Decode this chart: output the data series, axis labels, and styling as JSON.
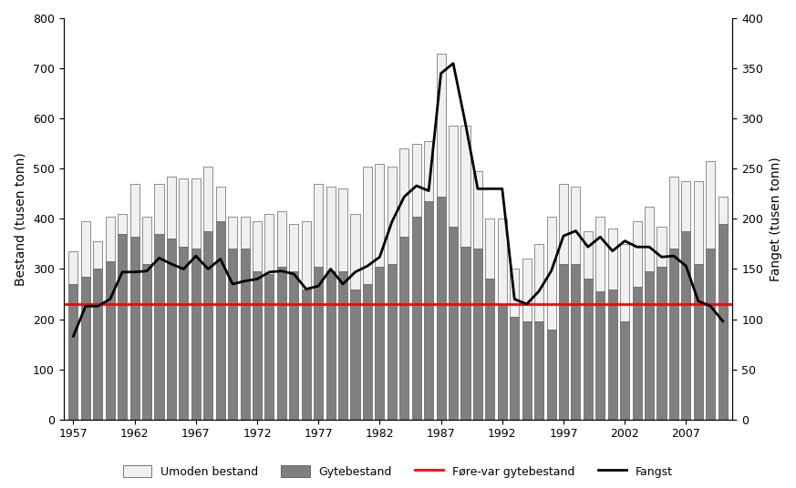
{
  "years": [
    1957,
    1958,
    1959,
    1960,
    1961,
    1962,
    1963,
    1964,
    1965,
    1966,
    1967,
    1968,
    1969,
    1970,
    1971,
    1972,
    1973,
    1974,
    1975,
    1976,
    1977,
    1978,
    1979,
    1980,
    1981,
    1982,
    1983,
    1984,
    1985,
    1986,
    1987,
    1988,
    1989,
    1990,
    1991,
    1992,
    1993,
    1994,
    1995,
    1996,
    1997,
    1998,
    1999,
    2000,
    2001,
    2002,
    2003,
    2004,
    2005,
    2006,
    2007,
    2008,
    2009,
    2010
  ],
  "gytebestand": [
    270,
    285,
    300,
    315,
    370,
    365,
    310,
    370,
    360,
    345,
    340,
    375,
    395,
    340,
    340,
    295,
    290,
    305,
    295,
    260,
    305,
    295,
    295,
    260,
    270,
    305,
    310,
    365,
    405,
    435,
    445,
    385,
    345,
    340,
    280,
    230,
    205,
    195,
    195,
    180,
    310,
    310,
    280,
    255,
    260,
    195,
    265,
    295,
    305,
    340,
    375,
    310,
    340,
    390
  ],
  "umoden": [
    65,
    110,
    55,
    90,
    40,
    105,
    95,
    100,
    125,
    135,
    140,
    130,
    70,
    65,
    65,
    100,
    120,
    110,
    95,
    135,
    165,
    170,
    165,
    150,
    235,
    205,
    195,
    175,
    145,
    120,
    285,
    200,
    240,
    155,
    120,
    170,
    95,
    125,
    155,
    225,
    160,
    155,
    95,
    150,
    120,
    155,
    130,
    130,
    80,
    145,
    100,
    165,
    175,
    55
  ],
  "fangst": [
    83,
    113,
    113,
    120,
    147,
    147,
    148,
    161,
    155,
    150,
    163,
    150,
    160,
    135,
    138,
    140,
    147,
    148,
    145,
    130,
    133,
    150,
    135,
    147,
    153,
    162,
    197,
    222,
    233,
    228,
    345,
    355,
    295,
    230,
    230,
    230,
    120,
    115,
    128,
    148,
    183,
    188,
    172,
    182,
    168,
    178,
    172,
    172,
    162,
    163,
    153,
    118,
    113,
    98
  ],
  "fore_var": 230,
  "ylim_left": [
    0,
    800
  ],
  "ylim_right": [
    0,
    400
  ],
  "ylabel_left": "Bestand (tusen tonn)",
  "ylabel_right": "Fanget (tusen tonn)",
  "xtick_years": [
    1957,
    1962,
    1967,
    1972,
    1977,
    1982,
    1987,
    1992,
    1997,
    2002,
    2007
  ],
  "legend_labels": [
    "Umoden bestand",
    "Gytebestand",
    "Føre-var gytebestand",
    "Fangst"
  ],
  "bar_width": 0.75,
  "color_gytebestand": "#808080",
  "color_umoden": "#f0f0f0",
  "color_fore_var": "#ff0000",
  "color_fangst": "#000000",
  "color_bar_edge": "#404040"
}
